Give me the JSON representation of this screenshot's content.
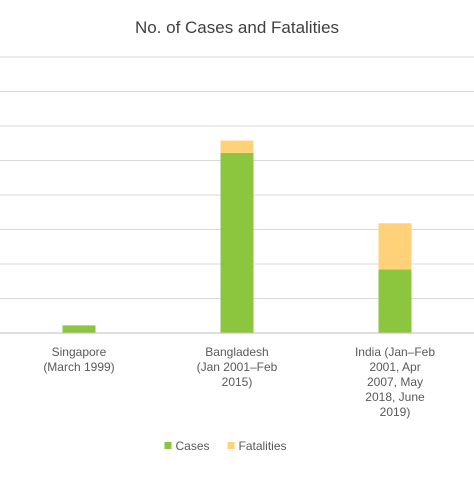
{
  "chart_data": {
    "type": "bar",
    "stacked": true,
    "title": "No. of Cases and Fatalities",
    "categories": [
      [
        "Singapore",
        "(March 1999)"
      ],
      [
        "Bangladesh",
        "(Jan 2001–Feb",
        "2015)"
      ],
      [
        "India (Jan–Feb",
        "2001, Apr",
        "2007, May",
        "2018, June",
        "2019)"
      ]
    ],
    "series": [
      {
        "name": "Cases",
        "color": "#8cc63f",
        "values": [
          11,
          261,
          92
        ]
      },
      {
        "name": "Fatalities",
        "color": "#ffd27a",
        "values": [
          0,
          18,
          67
        ]
      }
    ],
    "ylim": [
      0,
      400
    ],
    "grid": true,
    "y_tick_labels_shown": false,
    "legend": "bottom",
    "gridline_color": "#d9d9d9",
    "axis_color": "#bfbfbf"
  }
}
